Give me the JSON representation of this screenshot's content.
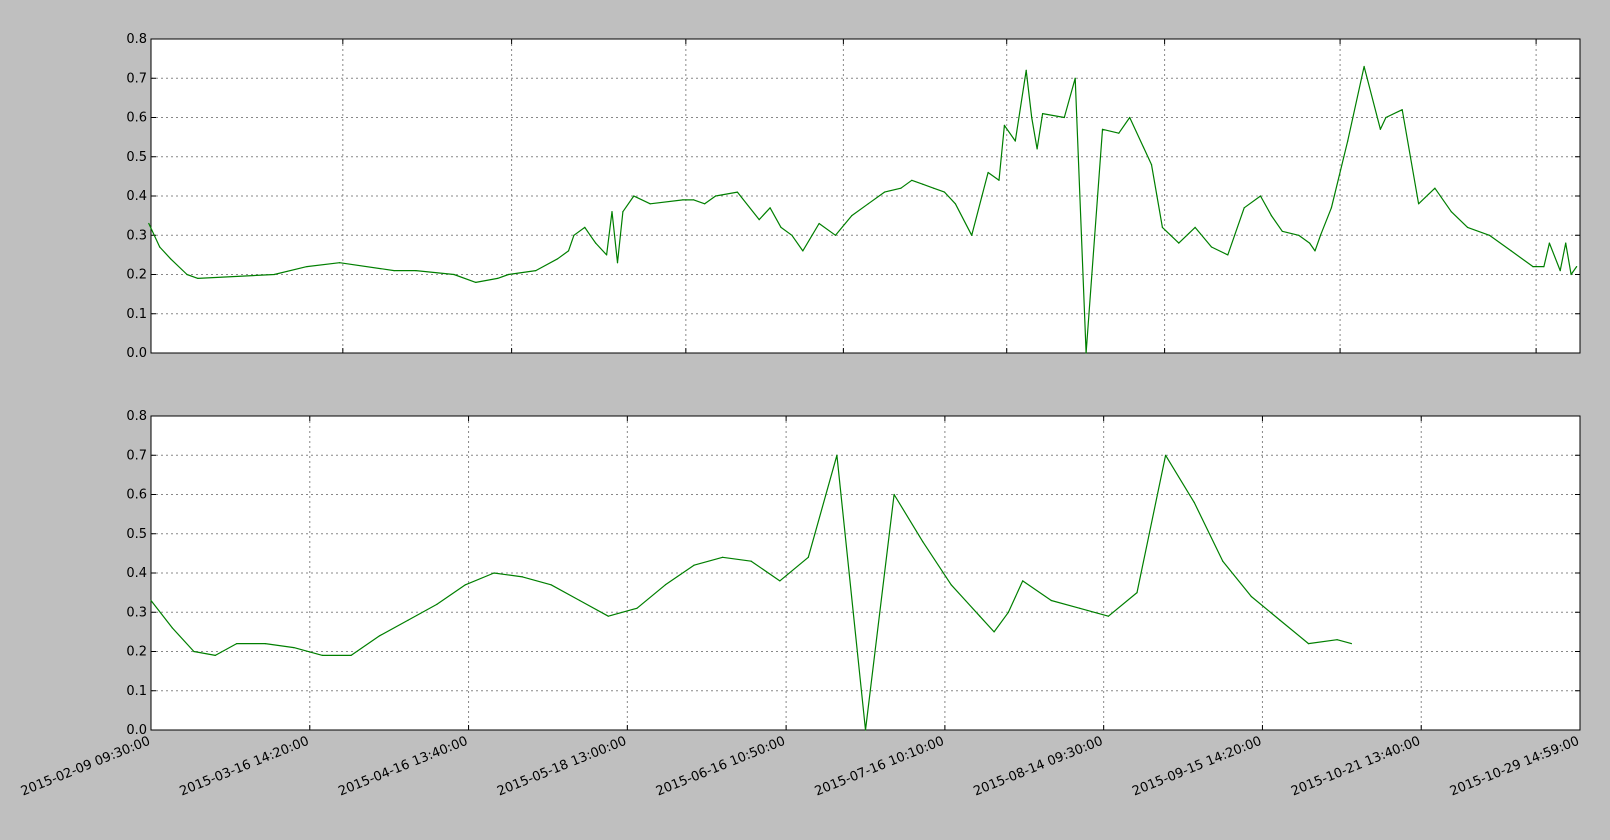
{
  "chart_data": [
    {
      "type": "line",
      "title": "",
      "xlabel": "",
      "ylabel": "",
      "ylim": [
        0,
        0.8
      ],
      "yticks": [
        "0.0",
        "0.1",
        "0.2",
        "0.3",
        "0.4",
        "0.5",
        "0.6",
        "0.7",
        "0.8"
      ],
      "xlim": [
        "2015-02-09 09:30:00",
        "2015-10-29 14:59:00"
      ],
      "x_axis": "calendar time",
      "xtick_positions": [
        "2015-03-16 14:20:00",
        "2015-04-16 13:40:00",
        "2015-05-18 13:00:00",
        "2015-06-16 10:50:00",
        "2015-07-16 10:10:00",
        "2015-08-14 09:30:00",
        "2015-09-15 14:20:00",
        "2015-10-21 13:40:00"
      ],
      "xtick_labels_shown": false,
      "grid": true,
      "color": "#007f00",
      "series": [
        {
          "x": [
            "2015-02-09",
            "2015-02-11",
            "2015-02-13",
            "2015-02-16",
            "2015-02-18",
            "2015-03-04",
            "2015-03-10",
            "2015-03-16",
            "2015-03-26",
            "2015-03-30",
            "2015-04-06",
            "2015-04-10",
            "2015-04-14",
            "2015-04-16",
            "2015-04-21",
            "2015-04-25",
            "2015-04-27",
            "2015-04-28",
            "2015-04-30",
            "2015-05-01",
            "2015-05-02",
            "2015-05-04",
            "2015-05-05",
            "2015-05-06",
            "2015-05-07",
            "2015-05-09",
            "2015-05-12",
            "2015-05-18",
            "2015-05-20",
            "2015-05-22",
            "2015-05-24",
            "2015-05-28",
            "2015-06-01",
            "2015-06-03",
            "2015-06-05",
            "2015-06-07",
            "2015-06-09",
            "2015-06-12",
            "2015-06-15",
            "2015-06-18",
            "2015-06-21",
            "2015-06-24",
            "2015-06-27",
            "2015-06-29",
            "2015-07-01",
            "2015-07-03",
            "2015-07-05",
            "2015-07-07",
            "2015-07-10",
            "2015-07-13",
            "2015-07-15",
            "2015-07-16",
            "2015-07-18",
            "2015-07-20",
            "2015-07-21",
            "2015-07-22",
            "2015-07-23",
            "2015-07-27",
            "2015-07-29",
            "2015-07-31",
            "2015-08-03",
            "2015-08-06",
            "2015-08-08",
            "2015-08-12",
            "2015-08-14",
            "2015-08-17",
            "2015-08-20",
            "2015-08-23",
            "2015-08-26",
            "2015-08-29",
            "2015-09-01",
            "2015-09-03",
            "2015-09-05",
            "2015-09-08",
            "2015-09-10",
            "2015-09-11",
            "2015-09-12",
            "2015-09-14",
            "2015-09-17",
            "2015-09-20",
            "2015-09-23",
            "2015-09-24",
            "2015-09-27",
            "2015-09-30",
            "2015-10-03",
            "2015-10-06",
            "2015-10-09",
            "2015-10-13",
            "2015-10-17",
            "2015-10-21",
            "2015-10-23",
            "2015-10-24",
            "2015-10-26",
            "2015-10-27",
            "2015-10-28",
            "2015-10-29"
          ],
          "values": [
            0.33,
            0.27,
            0.24,
            0.2,
            0.19,
            0.2,
            0.22,
            0.23,
            0.21,
            0.21,
            0.2,
            0.18,
            0.19,
            0.2,
            0.21,
            0.24,
            0.26,
            0.3,
            0.32,
            0.3,
            0.28,
            0.25,
            0.36,
            0.23,
            0.36,
            0.4,
            0.38,
            0.39,
            0.39,
            0.38,
            0.4,
            0.41,
            0.34,
            0.37,
            0.32,
            0.3,
            0.26,
            0.33,
            0.3,
            0.35,
            0.38,
            0.41,
            0.42,
            0.44,
            0.43,
            0.42,
            0.41,
            0.38,
            0.3,
            0.46,
            0.44,
            0.58,
            0.54,
            0.72,
            0.6,
            0.52,
            0.61,
            0.6,
            0.7,
            0.0,
            0.57,
            0.56,
            0.6,
            0.48,
            0.32,
            0.28,
            0.32,
            0.27,
            0.25,
            0.37,
            0.4,
            0.35,
            0.31,
            0.3,
            0.28,
            0.26,
            0.3,
            0.37,
            0.54,
            0.73,
            0.57,
            0.6,
            0.62,
            0.38,
            0.42,
            0.36,
            0.32,
            0.3,
            0.26,
            0.22,
            0.22,
            0.28,
            0.21,
            0.28,
            0.2,
            0.22
          ]
        }
      ]
    },
    {
      "type": "line",
      "title": "",
      "xlabel": "",
      "ylabel": "",
      "ylim": [
        0,
        0.8
      ],
      "yticks": [
        "0.0",
        "0.1",
        "0.2",
        "0.3",
        "0.4",
        "0.5",
        "0.6",
        "0.7",
        "0.8"
      ],
      "x_axis": "sequential trading bars",
      "xticks": [
        "2015-02-09 09:30:00",
        "2015-03-16 14:20:00",
        "2015-04-16 13:40:00",
        "2015-05-18 13:00:00",
        "2015-06-16 10:50:00",
        "2015-07-16 10:10:00",
        "2015-08-14 09:30:00",
        "2015-09-15 14:20:00",
        "2015-10-21 13:40:00",
        "2015-10-29 14:59:00"
      ],
      "x_range": [
        0,
        10000
      ],
      "data_end_x": 8400,
      "grid": true,
      "color": "#007f00",
      "series": [
        {
          "x": [
            0,
            150,
            300,
            450,
            600,
            800,
            1000,
            1200,
            1400,
            1600,
            1800,
            2000,
            2200,
            2400,
            2600,
            2800,
            3000,
            3200,
            3400,
            3600,
            3800,
            4000,
            4200,
            4400,
            4600,
            4800,
            5000,
            5200,
            5400,
            5600,
            5700,
            5800,
            5900,
            6000,
            6100,
            6300,
            6500,
            6700,
            6900,
            7100,
            7300,
            7500,
            7700,
            7900,
            8100,
            8300,
            8400
          ],
          "values": [
            0.33,
            0.26,
            0.2,
            0.19,
            0.22,
            0.22,
            0.21,
            0.19,
            0.19,
            0.24,
            0.28,
            0.32,
            0.37,
            0.4,
            0.39,
            0.37,
            0.33,
            0.29,
            0.31,
            0.37,
            0.42,
            0.44,
            0.43,
            0.38,
            0.44,
            0.7,
            0.0,
            0.6,
            0.48,
            0.37,
            0.33,
            0.29,
            0.25,
            0.3,
            0.38,
            0.33,
            0.31,
            0.29,
            0.35,
            0.7,
            0.58,
            0.43,
            0.34,
            0.28,
            0.22,
            0.23,
            0.22
          ]
        }
      ]
    }
  ]
}
